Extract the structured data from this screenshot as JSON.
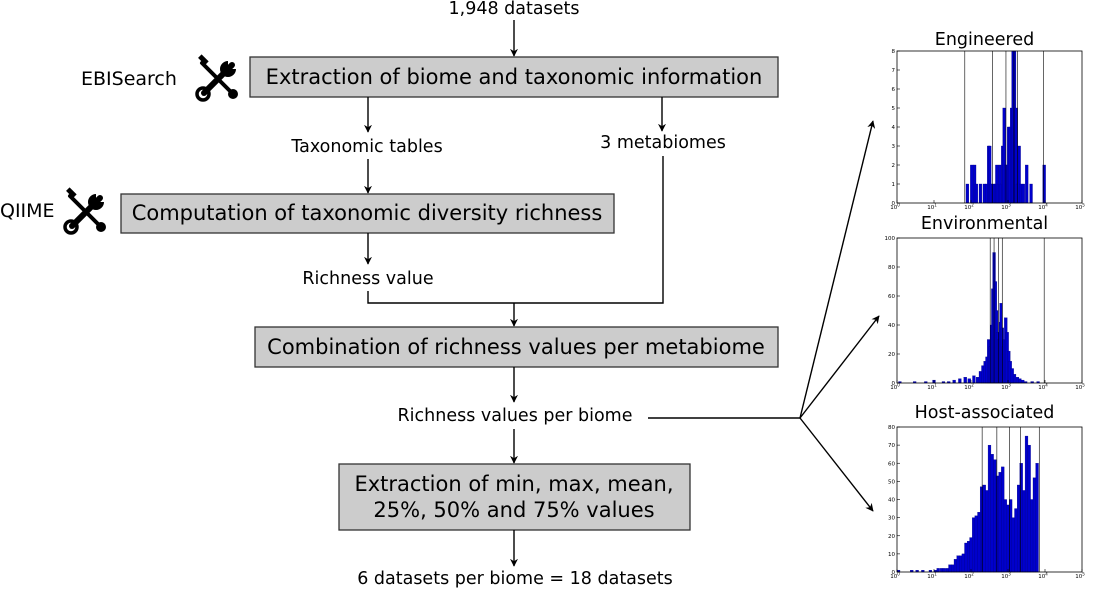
{
  "flow": {
    "input_label": "1,948 datasets",
    "box_extract": "Extraction of biome and taxonomic information",
    "label_taxonomic_tables": "Taxonomic tables",
    "label_metabiomes": "3 metabiomes",
    "box_compute": "Computation of taxonomic diversity richness",
    "label_richness_value": "Richness value",
    "box_combine": "Combination of richness values per metabiome",
    "label_richness_per_biome": "Richness values per biome",
    "box_stats_line1": "Extraction of min, max, mean,",
    "box_stats_line2": "25%, 50% and 75% values",
    "output_label": "6 datasets per biome = 18 datasets"
  },
  "tools": {
    "ebisearch": "EBISearch",
    "qiime": "QIIME"
  },
  "histograms": [
    {
      "title": "Engineered",
      "x_scale": "log",
      "xlim": [
        1,
        100000
      ],
      "x_ticks": [
        {
          "b": "10",
          "e": "0"
        },
        {
          "b": "10",
          "e": "1"
        },
        {
          "b": "10",
          "e": "2"
        },
        {
          "b": "10",
          "e": "3"
        },
        {
          "b": "10",
          "e": "4"
        },
        {
          "b": "10",
          "e": "5"
        }
      ],
      "ylim": [
        0,
        8
      ],
      "y_ticks": [
        0,
        1,
        2,
        3,
        4,
        5,
        6,
        7,
        8
      ],
      "bars": [
        {
          "x": 80,
          "v": 1
        },
        {
          "x": 105,
          "v": 2
        },
        {
          "x": 125,
          "v": 2
        },
        {
          "x": 140,
          "v": 1
        },
        {
          "x": 180,
          "v": 1
        },
        {
          "x": 230,
          "v": 1
        },
        {
          "x": 270,
          "v": 1
        },
        {
          "x": 300,
          "v": 3
        },
        {
          "x": 320,
          "v": 3
        },
        {
          "x": 350,
          "v": 1
        },
        {
          "x": 400,
          "v": 1
        },
        {
          "x": 460,
          "v": 1
        },
        {
          "x": 500,
          "v": 2
        },
        {
          "x": 550,
          "v": 1
        },
        {
          "x": 600,
          "v": 2
        },
        {
          "x": 660,
          "v": 1
        },
        {
          "x": 720,
          "v": 3
        },
        {
          "x": 790,
          "v": 5
        },
        {
          "x": 870,
          "v": 2
        },
        {
          "x": 950,
          "v": 2
        },
        {
          "x": 1040,
          "v": 4
        },
        {
          "x": 1140,
          "v": 4
        },
        {
          "x": 1250,
          "v": 5
        },
        {
          "x": 1370,
          "v": 8
        },
        {
          "x": 1500,
          "v": 8
        },
        {
          "x": 1650,
          "v": 5
        },
        {
          "x": 1800,
          "v": 1
        },
        {
          "x": 2000,
          "v": 3
        },
        {
          "x": 2200,
          "v": 1
        },
        {
          "x": 2600,
          "v": 1
        },
        {
          "x": 3200,
          "v": 2
        },
        {
          "x": 4200,
          "v": 1
        },
        {
          "x": 9500,
          "v": 2
        }
      ],
      "stat_lines": [
        68,
        380,
        880,
        1450,
        1820,
        9200
      ]
    },
    {
      "title": "Environmental",
      "x_scale": "log",
      "xlim": [
        1,
        100000
      ],
      "x_ticks": [
        {
          "b": "10",
          "e": "0"
        },
        {
          "b": "10",
          "e": "1"
        },
        {
          "b": "10",
          "e": "2"
        },
        {
          "b": "10",
          "e": "3"
        },
        {
          "b": "10",
          "e": "4"
        },
        {
          "b": "10",
          "e": "5"
        }
      ],
      "ylim": [
        0,
        100
      ],
      "y_ticks": [
        0,
        20,
        40,
        60,
        80,
        100
      ],
      "bars": [
        {
          "x": 1.2,
          "v": 1
        },
        {
          "x": 3,
          "v": 1
        },
        {
          "x": 6,
          "v": 1
        },
        {
          "x": 10,
          "v": 2
        },
        {
          "x": 18,
          "v": 1
        },
        {
          "x": 25,
          "v": 1
        },
        {
          "x": 35,
          "v": 2
        },
        {
          "x": 50,
          "v": 3
        },
        {
          "x": 70,
          "v": 4
        },
        {
          "x": 90,
          "v": 3
        },
        {
          "x": 120,
          "v": 5
        },
        {
          "x": 150,
          "v": 4
        },
        {
          "x": 180,
          "v": 8
        },
        {
          "x": 210,
          "v": 12
        },
        {
          "x": 240,
          "v": 15
        },
        {
          "x": 270,
          "v": 18
        },
        {
          "x": 300,
          "v": 30
        },
        {
          "x": 330,
          "v": 25
        },
        {
          "x": 360,
          "v": 40
        },
        {
          "x": 390,
          "v": 65
        },
        {
          "x": 420,
          "v": 90
        },
        {
          "x": 455,
          "v": 70
        },
        {
          "x": 490,
          "v": 50
        },
        {
          "x": 530,
          "v": 35
        },
        {
          "x": 570,
          "v": 30
        },
        {
          "x": 610,
          "v": 42
        },
        {
          "x": 650,
          "v": 55
        },
        {
          "x": 700,
          "v": 38
        },
        {
          "x": 750,
          "v": 25
        },
        {
          "x": 800,
          "v": 30
        },
        {
          "x": 870,
          "v": 45
        },
        {
          "x": 950,
          "v": 35
        },
        {
          "x": 1050,
          "v": 22
        },
        {
          "x": 1150,
          "v": 15
        },
        {
          "x": 1300,
          "v": 10
        },
        {
          "x": 1500,
          "v": 6
        },
        {
          "x": 1800,
          "v": 4
        },
        {
          "x": 2100,
          "v": 3
        },
        {
          "x": 2500,
          "v": 2
        },
        {
          "x": 3000,
          "v": 1
        },
        {
          "x": 4500,
          "v": 1
        },
        {
          "x": 6500,
          "v": 1
        }
      ],
      "stat_lines": [
        330,
        420,
        560,
        700,
        9500
      ]
    },
    {
      "title": "Host-associated",
      "x_scale": "log",
      "xlim": [
        1,
        100000
      ],
      "x_ticks": [
        {
          "b": "10",
          "e": "0"
        },
        {
          "b": "10",
          "e": "1"
        },
        {
          "b": "10",
          "e": "2"
        },
        {
          "b": "10",
          "e": "3"
        },
        {
          "b": "10",
          "e": "4"
        },
        {
          "b": "10",
          "e": "5"
        }
      ],
      "ylim": [
        0,
        80
      ],
      "y_ticks": [
        0,
        10,
        20,
        30,
        40,
        50,
        60,
        70,
        80
      ],
      "bars": [
        {
          "x": 1.1,
          "v": 1
        },
        {
          "x": 2.5,
          "v": 1
        },
        {
          "x": 3.5,
          "v": 1
        },
        {
          "x": 5,
          "v": 1
        },
        {
          "x": 8,
          "v": 1
        },
        {
          "x": 11,
          "v": 1
        },
        {
          "x": 13,
          "v": 2
        },
        {
          "x": 16,
          "v": 2
        },
        {
          "x": 19,
          "v": 2
        },
        {
          "x": 23,
          "v": 2
        },
        {
          "x": 27,
          "v": 4
        },
        {
          "x": 32,
          "v": 4
        },
        {
          "x": 38,
          "v": 7
        },
        {
          "x": 45,
          "v": 9
        },
        {
          "x": 53,
          "v": 9
        },
        {
          "x": 62,
          "v": 10
        },
        {
          "x": 73,
          "v": 16
        },
        {
          "x": 86,
          "v": 17
        },
        {
          "x": 100,
          "v": 19
        },
        {
          "x": 118,
          "v": 30
        },
        {
          "x": 139,
          "v": 31
        },
        {
          "x": 164,
          "v": 33
        },
        {
          "x": 193,
          "v": 47
        },
        {
          "x": 228,
          "v": 48
        },
        {
          "x": 268,
          "v": 45
        },
        {
          "x": 316,
          "v": 70
        },
        {
          "x": 373,
          "v": 65
        },
        {
          "x": 440,
          "v": 62
        },
        {
          "x": 518,
          "v": 53
        },
        {
          "x": 611,
          "v": 55
        },
        {
          "x": 720,
          "v": 58
        },
        {
          "x": 849,
          "v": 40
        },
        {
          "x": 1000,
          "v": 37
        },
        {
          "x": 1179,
          "v": 40
        },
        {
          "x": 1390,
          "v": 30
        },
        {
          "x": 1638,
          "v": 35
        },
        {
          "x": 1931,
          "v": 48
        },
        {
          "x": 2276,
          "v": 60
        },
        {
          "x": 2683,
          "v": 45
        },
        {
          "x": 3162,
          "v": 75
        },
        {
          "x": 3728,
          "v": 70
        },
        {
          "x": 4394,
          "v": 40
        },
        {
          "x": 5179,
          "v": 52
        },
        {
          "x": 6105,
          "v": 60
        }
      ],
      "stat_lines": [
        200,
        500,
        1100,
        2200,
        7000
      ]
    }
  ]
}
